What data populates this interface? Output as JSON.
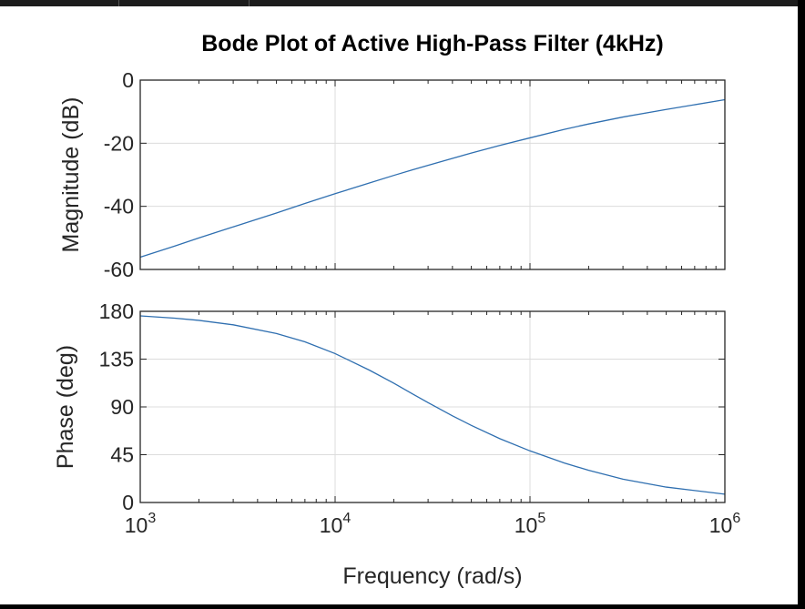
{
  "figure": {
    "title": "Bode Plot of Active High-Pass Filter (4kHz)",
    "xlabel": "Frequency (rad/s)",
    "background": "#ffffff",
    "line_color": "#2f6fb0",
    "grid_color": "#dcdcdc",
    "axis_color": "#262626"
  },
  "chart_data": [
    {
      "type": "line",
      "title": "Bode Plot of Active High-Pass Filter (4kHz)",
      "xlabel": "",
      "ylabel": "Magnitude (dB)",
      "xscale": "log",
      "xlim": [
        1000,
        1000000
      ],
      "ylim": [
        -60,
        0
      ],
      "xticks": [
        1000,
        10000,
        100000,
        1000000
      ],
      "yticks": [
        -60,
        -40,
        -20,
        0
      ],
      "ytick_labels": [
        "-60",
        "-40",
        "-20",
        "0"
      ],
      "grid": true,
      "series": [
        {
          "x": [
            1000,
            1500,
            2000,
            3000,
            5000,
            7000,
            10000,
            15000,
            20000,
            25000,
            30000,
            40000,
            50000,
            70000,
            100000,
            150000,
            200000,
            300000,
            500000,
            1000000
          ],
          "y": [
            -56.1,
            -52.6,
            -50.0,
            -46.5,
            -42.1,
            -39.1,
            -36.0,
            -32.6,
            -30.2,
            -28.4,
            -27.0,
            -24.8,
            -23.1,
            -20.7,
            -18.3,
            -15.6,
            -13.9,
            -11.7,
            -9.3,
            -6.2
          ]
        }
      ]
    },
    {
      "type": "line",
      "xlabel": "Frequency (rad/s)",
      "ylabel": "Phase (deg)",
      "xscale": "log",
      "xlim": [
        1000,
        1000000
      ],
      "ylim": [
        0,
        180
      ],
      "xticks": [
        1000,
        10000,
        100000,
        1000000
      ],
      "xtick_labels": [
        {
          "base": "10",
          "exp": "3"
        },
        {
          "base": "10",
          "exp": "4"
        },
        {
          "base": "10",
          "exp": "5"
        },
        {
          "base": "10",
          "exp": "6"
        }
      ],
      "yticks": [
        0,
        45,
        90,
        135,
        180
      ],
      "ytick_labels": [
        "0",
        "45",
        "90",
        "135",
        "180"
      ],
      "grid": true,
      "series": [
        {
          "x": [
            1000,
            1500,
            2000,
            3000,
            5000,
            7000,
            10000,
            15000,
            20000,
            25000,
            30000,
            40000,
            50000,
            70000,
            100000,
            150000,
            200000,
            300000,
            500000,
            1000000
          ],
          "y": [
            175.7,
            173.6,
            171.5,
            167.3,
            159.1,
            151.3,
            140.2,
            124.6,
            112.3,
            102.2,
            94.0,
            81.6,
            72.6,
            60.1,
            48.6,
            37.2,
            30.3,
            22.0,
            14.5,
            7.8
          ]
        }
      ]
    }
  ]
}
